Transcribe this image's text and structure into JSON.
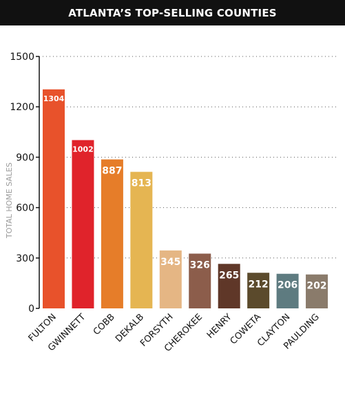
{
  "header": {
    "title": "ATLANTA’S TOP-SELLING COUNTIES"
  },
  "chart_data": {
    "type": "bar",
    "title": "ATLANTA’S TOP-SELLING COUNTIES",
    "xlabel": "",
    "ylabel": "TOTAL HOME SALES",
    "ylim": [
      0,
      1500
    ],
    "yticks": [
      0,
      300,
      600,
      900,
      1200,
      1500
    ],
    "grid": true,
    "categories": [
      "FULTON",
      "GWINNETT",
      "COBB",
      "DEKALB",
      "FORSYTH",
      "CHEROKEE",
      "HENRY",
      "COWETA",
      "CLAYTON",
      "PAULDING"
    ],
    "values": [
      1304,
      1002,
      887,
      813,
      345,
      326,
      265,
      212,
      206,
      202
    ],
    "colors": [
      "#e8522b",
      "#e0232b",
      "#e67d29",
      "#e5b552",
      "#e5b684",
      "#8c5d4b",
      "#5f3728",
      "#5b4a2c",
      "#5e7b80",
      "#8a7b6b"
    ]
  }
}
